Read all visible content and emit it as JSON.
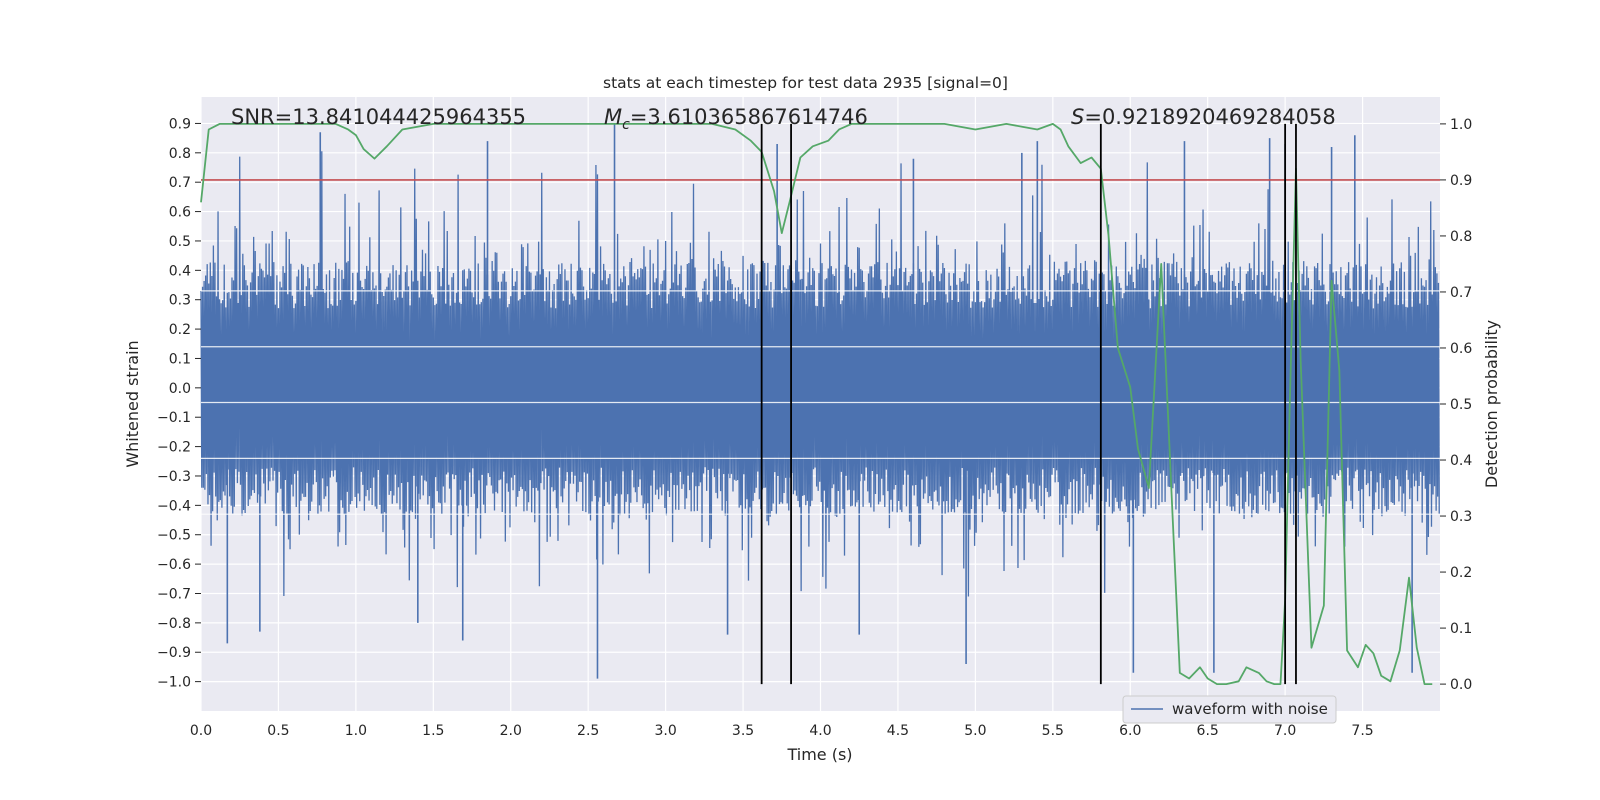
{
  "chart_data": {
    "type": "line",
    "title": "stats at each timestep for test data 2935 [signal=0]",
    "xlabel": "Time (s)",
    "ylabel": "Whitened strain",
    "y2label": "Detection probability",
    "xlim": [
      0.0,
      8.0
    ],
    "ylim": [
      -1.1,
      0.99
    ],
    "y2lim": [
      -0.048,
      1.048
    ],
    "xticks": [
      0.0,
      0.5,
      1.0,
      1.5,
      2.0,
      2.5,
      3.0,
      3.5,
      4.0,
      4.5,
      5.0,
      5.5,
      6.0,
      6.5,
      7.0,
      7.5
    ],
    "yticks": [
      0.9,
      0.8,
      0.7,
      0.6,
      0.5,
      0.4,
      0.3,
      0.2,
      0.1,
      0.0,
      -0.1,
      -0.2,
      -0.3,
      -0.4,
      -0.5,
      -0.6,
      -0.7,
      -0.8,
      -0.9,
      -1.0
    ],
    "y2ticks": [
      1.0,
      0.9,
      0.8,
      0.7,
      0.6,
      0.5,
      0.4,
      0.3,
      0.2,
      0.1,
      0.0
    ],
    "annotations": {
      "snr": "SNR=13.841044425964355",
      "mc_symbol": "M",
      "mc_subscript": "c",
      "mc_value": "=3.610365867614746",
      "s_symbol": "S",
      "s_value": "=0.9218920469284058"
    },
    "legend": {
      "label": "waveform with noise",
      "location": "lower-right"
    },
    "threshold": {
      "value": 0.9,
      "axis": "right",
      "color": "#c44e52"
    },
    "vertical_lines": [
      3.62,
      3.81,
      5.81,
      7.0,
      7.07
    ],
    "waveform": {
      "name": "waveform with noise",
      "color": "#4c72b0",
      "count": 1600,
      "duration": 8.0,
      "seed": 2935,
      "envelope": [
        0.27,
        0.43
      ],
      "spikes": [
        {
          "t": 0.17,
          "v": -0.87
        },
        {
          "t": 0.38,
          "v": -0.83
        },
        {
          "t": 0.77,
          "v": 0.87
        },
        {
          "t": 1.4,
          "v": -0.8
        },
        {
          "t": 1.69,
          "v": -0.86
        },
        {
          "t": 1.85,
          "v": 0.84
        },
        {
          "t": 2.56,
          "v": -0.99
        },
        {
          "t": 2.67,
          "v": 0.9
        },
        {
          "t": 3.4,
          "v": -0.84
        },
        {
          "t": 3.72,
          "v": 0.83
        },
        {
          "t": 4.25,
          "v": -0.84
        },
        {
          "t": 4.6,
          "v": 0.78
        },
        {
          "t": 4.94,
          "v": -0.94
        },
        {
          "t": 5.3,
          "v": 0.8
        },
        {
          "t": 5.4,
          "v": 0.84
        },
        {
          "t": 6.02,
          "v": -0.97
        },
        {
          "t": 6.35,
          "v": 0.84
        },
        {
          "t": 6.54,
          "v": -0.97
        },
        {
          "t": 6.9,
          "v": 0.85
        },
        {
          "t": 7.0,
          "v": 0.83
        },
        {
          "t": 7.3,
          "v": 0.82
        },
        {
          "t": 7.45,
          "v": 0.86
        },
        {
          "t": 7.82,
          "v": -0.97
        }
      ]
    },
    "detection_probability": {
      "name": "detection probability",
      "color": "#55a868",
      "t": [
        0.0,
        0.05,
        0.12,
        0.3,
        0.5,
        0.7,
        0.8,
        0.87,
        0.95,
        1.0,
        1.05,
        1.12,
        1.2,
        1.3,
        1.5,
        1.8,
        2.0,
        2.3,
        2.6,
        3.0,
        3.3,
        3.45,
        3.55,
        3.62,
        3.7,
        3.75,
        3.8,
        3.87,
        3.95,
        4.05,
        4.12,
        4.2,
        4.3,
        4.5,
        4.8,
        5.0,
        5.2,
        5.4,
        5.5,
        5.55,
        5.6,
        5.68,
        5.75,
        5.81,
        5.86,
        5.92,
        6.0,
        6.05,
        6.12,
        6.2,
        6.27,
        6.32,
        6.38,
        6.45,
        6.5,
        6.56,
        6.62,
        6.7,
        6.75,
        6.83,
        6.88,
        6.93,
        6.97,
        7.0,
        7.03,
        7.07,
        7.1,
        7.17,
        7.25,
        7.3,
        7.35,
        7.4,
        7.47,
        7.52,
        7.57,
        7.62,
        7.68,
        7.74,
        7.8,
        7.85,
        7.9,
        7.95
      ],
      "p": [
        0.86,
        0.99,
        1.0,
        1.0,
        1.0,
        1.0,
        1.0,
        1.0,
        0.99,
        0.98,
        0.955,
        0.938,
        0.96,
        0.99,
        1.0,
        1.0,
        1.0,
        1.0,
        1.0,
        1.0,
        1.0,
        0.99,
        0.97,
        0.95,
        0.88,
        0.805,
        0.86,
        0.94,
        0.96,
        0.97,
        0.99,
        1.0,
        1.0,
        1.0,
        1.0,
        0.99,
        1.0,
        0.99,
        1.0,
        0.99,
        0.96,
        0.93,
        0.94,
        0.92,
        0.8,
        0.6,
        0.53,
        0.42,
        0.35,
        0.75,
        0.32,
        0.02,
        0.01,
        0.03,
        0.01,
        0.0,
        0.0,
        0.005,
        0.03,
        0.02,
        0.005,
        0.0,
        0.0,
        0.15,
        0.5,
        0.92,
        0.58,
        0.065,
        0.14,
        0.72,
        0.56,
        0.06,
        0.03,
        0.07,
        0.055,
        0.015,
        0.005,
        0.06,
        0.19,
        0.065,
        0.0,
        0.0
      ]
    }
  }
}
